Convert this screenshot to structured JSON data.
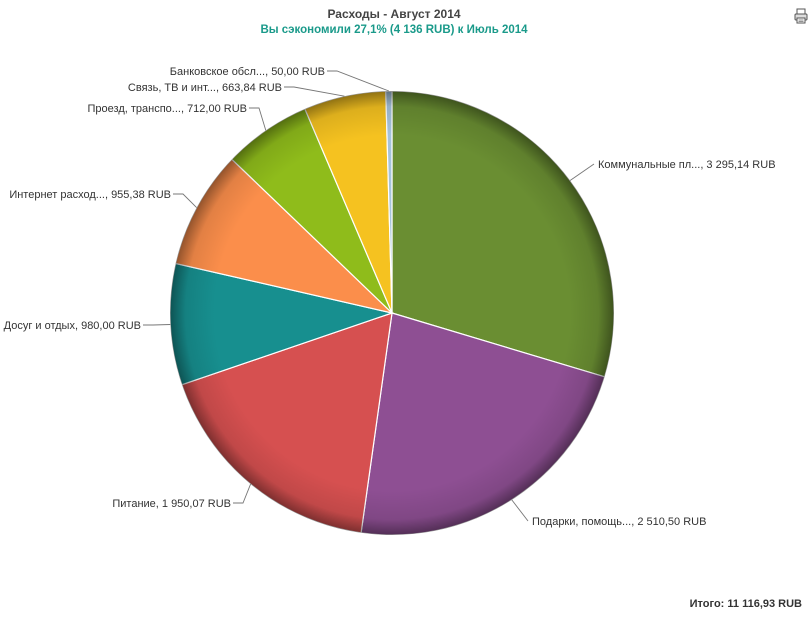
{
  "header": {
    "title": "Расходы - Август 2014",
    "subtitle": "Вы сэкономили 27,1% (4 136 RUB) к Июль 2014"
  },
  "footer": {
    "total": "Итого: 11 116,93 RUB"
  },
  "toolbar": {
    "export_icon": "print-export-icon"
  },
  "chart_data": {
    "type": "pie",
    "start_angle_deg": 0,
    "direction": "clockwise",
    "slices": [
      {
        "label": "Коммунальные пл..., 3 295,14 RUB",
        "value": 3295.14,
        "color": "#6a8e32"
      },
      {
        "label": "Подарки, помощь..., 2 510,50 RUB",
        "value": 2510.5,
        "color": "#8e4f93"
      },
      {
        "label": "Питание, 1 950,07 RUB",
        "value": 1950.07,
        "color": "#d65050"
      },
      {
        "label": "Досуг и отдых, 980,00 RUB",
        "value": 980.0,
        "color": "#178f8f"
      },
      {
        "label": "Интернет расход..., 955,38 RUB",
        "value": 955.38,
        "color": "#fb8e4b"
      },
      {
        "label": "Проезд, транспо..., 712,00 RUB",
        "value": 712.0,
        "color": "#8fbc1b"
      },
      {
        "label": "Связь, ТВ и инт..., 663,84 RUB",
        "value": 663.84,
        "color": "#f5c220"
      },
      {
        "label": "Банковское обсл..., 50,00 RUB",
        "value": 50.0,
        "color": "#a5c3dc"
      }
    ]
  }
}
